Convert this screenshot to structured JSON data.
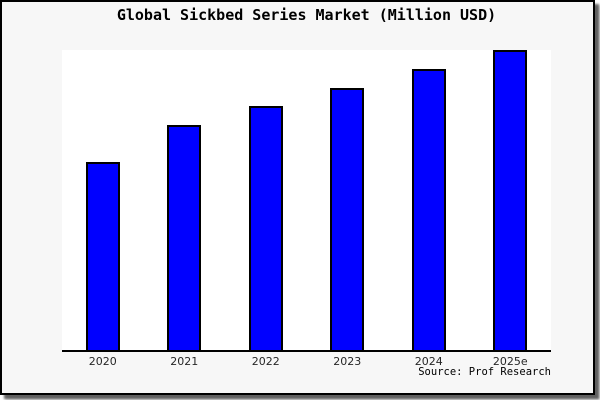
{
  "title": "Global Sickbed Series Market (Million USD)",
  "source": "Source: Prof Research",
  "colors": {
    "bar_fill": "#0000ff",
    "bar_border": "#000000",
    "plot_background": "#ffffff",
    "outer_background": "#f7f7f7",
    "frame_border": "#000000",
    "tick_label": "#262626"
  },
  "chart_data": {
    "type": "bar",
    "title": "Global Sickbed Series Market (Million USD)",
    "categories": [
      "2020",
      "2021",
      "2022",
      "2023",
      "2024",
      "2025e"
    ],
    "values": [
      190,
      227,
      246,
      264,
      283,
      302
    ],
    "value_note": "No y-axis scale shown; values are relative bar heights in screen pixels (max bar = 302)",
    "relative_index": [
      1.0,
      1.19,
      1.29,
      1.39,
      1.49,
      1.59
    ],
    "xlabel": "",
    "ylabel": "",
    "ylim": [
      0,
      302
    ],
    "grid": false,
    "legend": false,
    "y_axis_visible": false,
    "x_axis_visible": true,
    "annotation": "Source: Prof Research"
  }
}
